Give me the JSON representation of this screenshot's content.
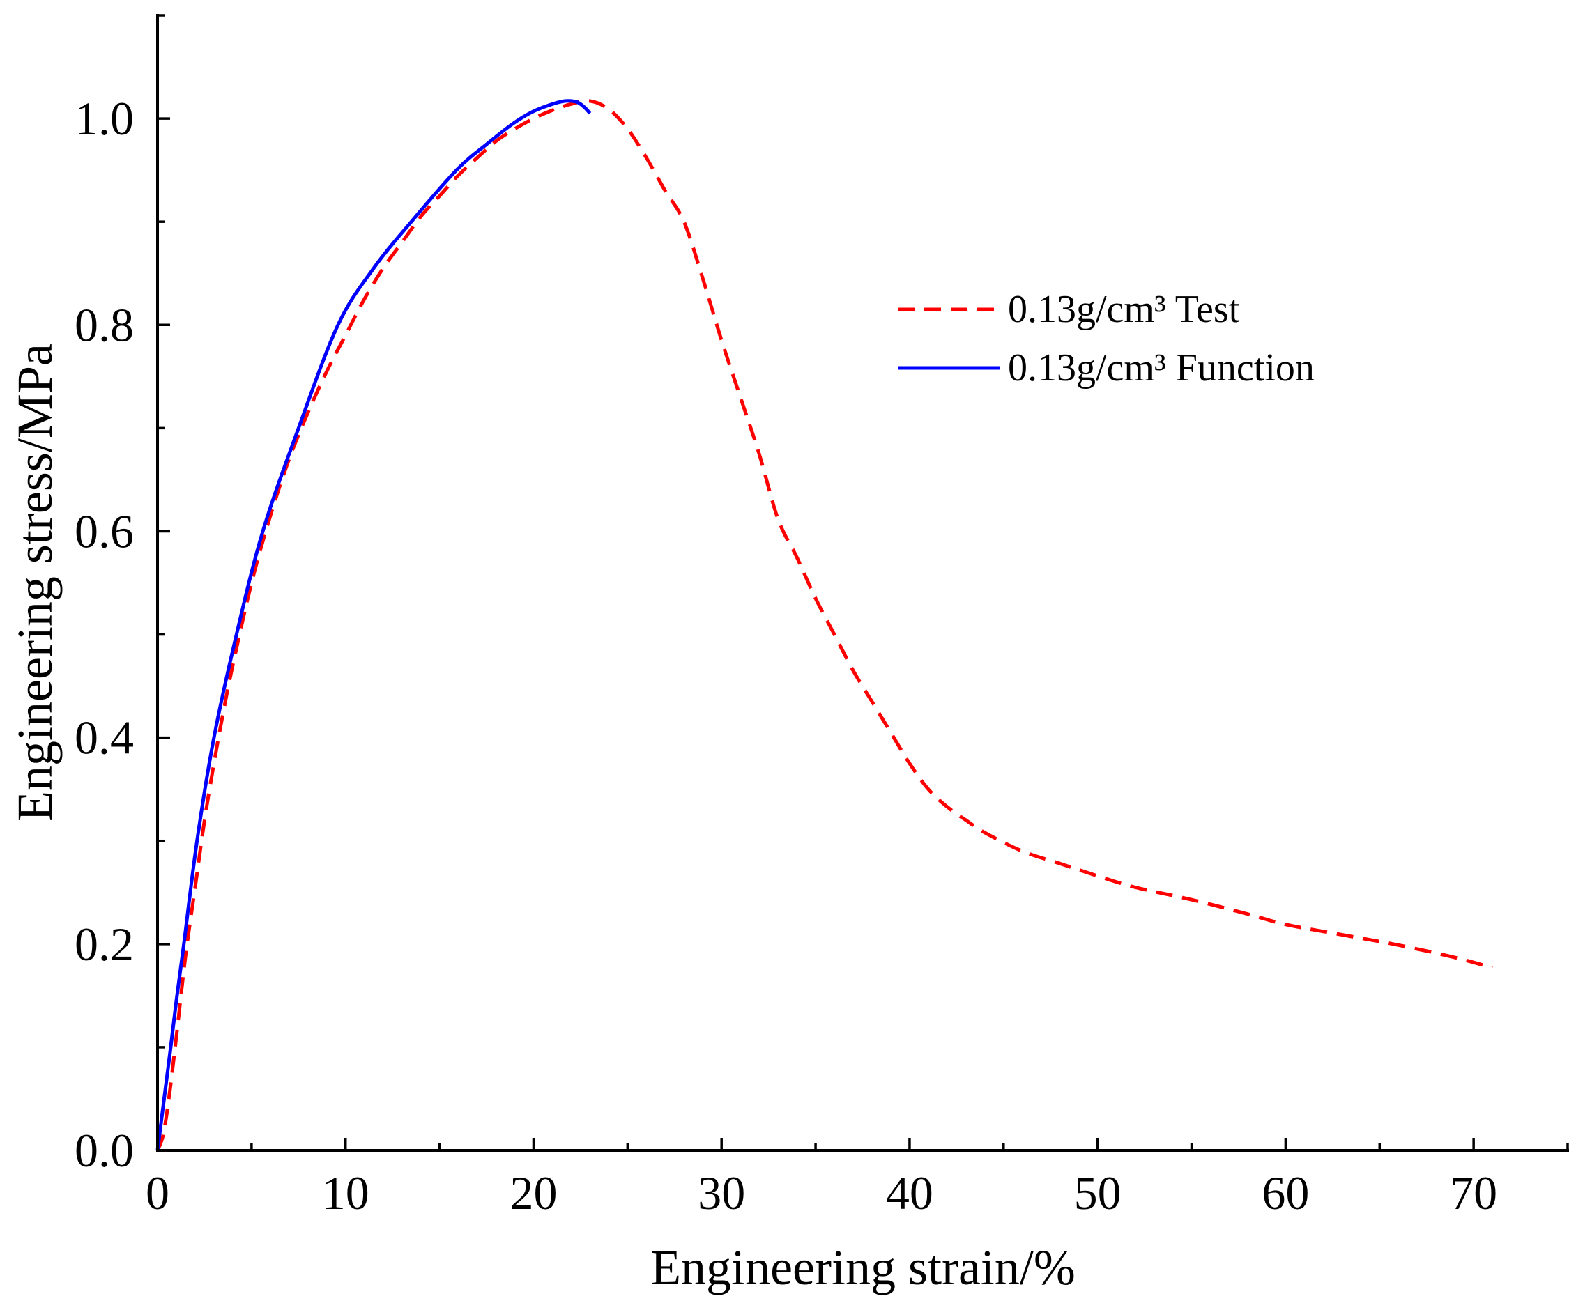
{
  "chart_data": {
    "type": "line",
    "xlabel": "Engineering strain/%",
    "ylabel": "Engineering stress/MPa",
    "xlim": [
      0,
      75
    ],
    "ylim": [
      0,
      1.1
    ],
    "grid": false,
    "legend_position": "right",
    "x_ticks": {
      "major": [
        0,
        10,
        20,
        30,
        40,
        50,
        60,
        70
      ],
      "labels": [
        "0",
        "10",
        "20",
        "30",
        "40",
        "50",
        "60",
        "70"
      ],
      "minor": [
        5,
        15,
        25,
        35,
        45,
        55,
        65,
        75
      ]
    },
    "y_ticks": {
      "major": [
        0.0,
        0.2,
        0.4,
        0.6,
        0.8,
        1.0
      ],
      "labels": [
        "0.0",
        "0.2",
        "0.4",
        "0.6",
        "0.8",
        "1.0"
      ],
      "minor": [
        0.1,
        0.3,
        0.5,
        0.7,
        0.9,
        1.1
      ]
    },
    "series": [
      {
        "name": "0.13g/cm³ Test",
        "color": "#ff0000",
        "x": [
          0,
          0.3,
          0.6,
          1.0,
          1.5,
          2.0,
          2.5,
          3.0,
          3.5,
          4.0,
          5.0,
          6.0,
          7.0,
          8.0,
          9.0,
          10.0,
          11.0,
          12.0,
          13.0,
          14.0,
          15.0,
          16.0,
          17.0,
          18.0,
          19.0,
          20.0,
          21.0,
          22.0,
          23.0,
          24.0,
          25.0,
          26.0,
          27.0,
          28.0,
          29.0,
          30.0,
          31.0,
          32.0,
          33.0,
          34.0,
          35.0,
          36.0,
          37.0,
          38.0,
          39.0,
          40.0,
          41.0,
          42.0,
          43.0,
          44.0,
          46.0,
          48.0,
          50.0,
          52.0,
          55.0,
          58.0,
          60.0,
          63.0,
          66.0,
          69.0,
          71.0
        ],
        "y": [
          0,
          0.015,
          0.05,
          0.11,
          0.19,
          0.255,
          0.32,
          0.375,
          0.425,
          0.47,
          0.55,
          0.615,
          0.67,
          0.715,
          0.755,
          0.79,
          0.825,
          0.855,
          0.88,
          0.905,
          0.925,
          0.945,
          0.962,
          0.978,
          0.99,
          1.0,
          1.008,
          1.014,
          1.017,
          1.009,
          0.99,
          0.962,
          0.93,
          0.9,
          0.845,
          0.785,
          0.73,
          0.675,
          0.612,
          0.575,
          0.535,
          0.5,
          0.465,
          0.435,
          0.405,
          0.375,
          0.35,
          0.333,
          0.32,
          0.308,
          0.29,
          0.278,
          0.266,
          0.255,
          0.243,
          0.229,
          0.219,
          0.209,
          0.199,
          0.187,
          0.177
        ]
      },
      {
        "name": "0.13g/cm³ Function",
        "color": "#0000ff",
        "x": [
          0,
          0.35,
          0.7,
          1.0,
          1.4,
          2.1,
          3.0,
          4.2,
          5.6,
          7.5,
          9.6,
          11.5,
          13.5,
          15.9,
          17.5,
          18.9,
          20.0,
          21.0,
          21.7,
          22.3,
          22.7,
          23.0
        ],
        "y": [
          0,
          0.05,
          0.1,
          0.145,
          0.2,
          0.3,
          0.4,
          0.5,
          0.6,
          0.7,
          0.8,
          0.855,
          0.9,
          0.95,
          0.975,
          0.995,
          1.007,
          1.014,
          1.017,
          1.016,
          1.011,
          1.005
        ]
      }
    ]
  }
}
